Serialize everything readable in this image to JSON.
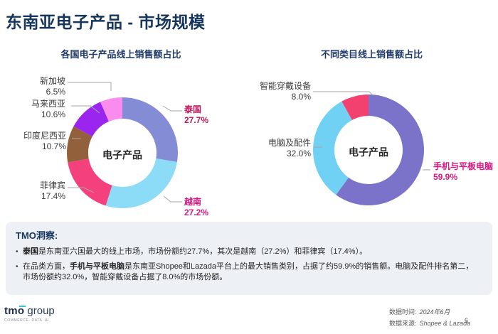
{
  "page": {
    "title": "东南亚电子产品 - 市场规模",
    "accent_navy": "#17365d",
    "insight_box_bg": "#edf0f5"
  },
  "chart_data": [
    {
      "type": "pie",
      "subtype": "donut",
      "title": "各国电子产品线上销售额占比",
      "center_label": "电子产品",
      "unit": "%",
      "start_angle_deg": 0,
      "direction": "clockwise",
      "legend_position": "callout-labels",
      "segments": [
        {
          "label": "泰国",
          "value": 27.7,
          "display": "27.7%",
          "color": "#858cd6",
          "highlighted": true,
          "label_color": "#c11559"
        },
        {
          "label": "越南",
          "value": 27.2,
          "display": "27.2%",
          "color": "#8ddcf7",
          "highlighted": true,
          "label_color": "#d6157f"
        },
        {
          "label": "菲律宾",
          "value": 17.4,
          "display": "17.4%",
          "color": "#f4407c",
          "highlighted": false,
          "label_color": "#3b3b3b"
        },
        {
          "label": "印度尼西亚",
          "value": 10.7,
          "display": "10.7%",
          "color": "#92613b",
          "highlighted": false,
          "label_color": "#3b3b3b"
        },
        {
          "label": "马来西亚",
          "value": 10.6,
          "display": "10.6%",
          "color": "#9a25ef",
          "highlighted": false,
          "label_color": "#3b3b3b"
        },
        {
          "label": "新加坡",
          "value": 6.5,
          "display": "6.5%",
          "color": "#fa8cf0",
          "highlighted": false,
          "label_color": "#3b3b3b"
        }
      ]
    },
    {
      "type": "pie",
      "subtype": "donut",
      "title": "不同类目线上销售额占比",
      "center_label": "电子产品",
      "unit": "%",
      "start_angle_deg": 0,
      "direction": "clockwise",
      "legend_position": "callout-labels",
      "segments": [
        {
          "label": "手机与平板电脑",
          "value": 59.9,
          "display": "59.9%",
          "color": "#7b73c9",
          "highlighted": true,
          "label_color": "#dd1680"
        },
        {
          "label": "电脑及配件",
          "value": 32.0,
          "display": "32.0%",
          "color": "#70d1f4",
          "highlighted": false,
          "label_color": "#3b3b3b"
        },
        {
          "label": "智能穿戴设备",
          "value": 8.0,
          "display": "8.0%",
          "color": "#f2416e",
          "highlighted": false,
          "label_color": "#3b3b3b"
        }
      ]
    }
  ],
  "insight": {
    "heading": "TMO洞察:",
    "bullets": [
      {
        "segments": [
          {
            "text": "泰国",
            "bold": true
          },
          {
            "text": "是东南亚六国最大的线上市场，市场份额约27.7%，其次是越南（27.2%）和菲律宾（17.4%）。",
            "bold": false
          }
        ]
      },
      {
        "segments": [
          {
            "text": "在品类方面，",
            "bold": false
          },
          {
            "text": "手机与平板电脑",
            "bold": true
          },
          {
            "text": "是东南亚Shopee和Lazada平台上的最大销售类别，占据了约59.9%的销售额。电脑及配件排名第二，市场份额约32.0%，智能穿戴设备占据了8.0%的市场份额。",
            "bold": false
          }
        ]
      }
    ]
  },
  "footer": {
    "logo_text": "tmo",
    "logo_suffix": "group",
    "logo_tagline": "COMMERCE. DATA. AI",
    "data_time_label": "数据时间:",
    "data_time_value": "2024年6月",
    "data_source_label": "数据来源:",
    "data_source_value": "Shopee & Lazada",
    "page_number": "6"
  }
}
